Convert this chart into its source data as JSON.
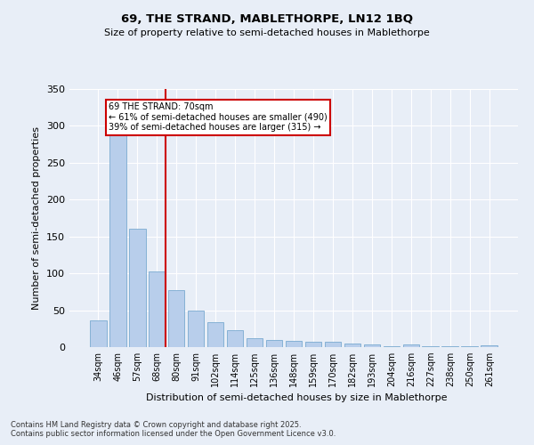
{
  "title1": "69, THE STRAND, MABLETHORPE, LN12 1BQ",
  "title2": "Size of property relative to semi-detached houses in Mablethorpe",
  "xlabel": "Distribution of semi-detached houses by size in Mablethorpe",
  "ylabel": "Number of semi-detached properties",
  "categories": [
    "34sqm",
    "46sqm",
    "57sqm",
    "68sqm",
    "80sqm",
    "91sqm",
    "102sqm",
    "114sqm",
    "125sqm",
    "136sqm",
    "148sqm",
    "159sqm",
    "170sqm",
    "182sqm",
    "193sqm",
    "204sqm",
    "216sqm",
    "227sqm",
    "238sqm",
    "250sqm",
    "261sqm"
  ],
  "values": [
    36,
    290,
    160,
    103,
    77,
    50,
    34,
    23,
    12,
    10,
    8,
    7,
    7,
    5,
    4,
    1,
    4,
    1,
    1,
    1,
    3
  ],
  "bar_color": "#b8ceeb",
  "bar_edge_color": "#7aaad0",
  "vline_color": "#cc0000",
  "annotation_title": "69 THE STRAND: 70sqm",
  "annotation_line1": "← 61% of semi-detached houses are smaller (490)",
  "annotation_line2": "39% of semi-detached houses are larger (315) →",
  "annotation_box_color": "#ffffff",
  "annotation_box_edge": "#cc0000",
  "background_color": "#e8eef7",
  "grid_color": "#ffffff",
  "footer1": "Contains HM Land Registry data © Crown copyright and database right 2025.",
  "footer2": "Contains public sector information licensed under the Open Government Licence v3.0.",
  "ylim": [
    0,
    350
  ],
  "yticks": [
    0,
    50,
    100,
    150,
    200,
    250,
    300,
    350
  ]
}
